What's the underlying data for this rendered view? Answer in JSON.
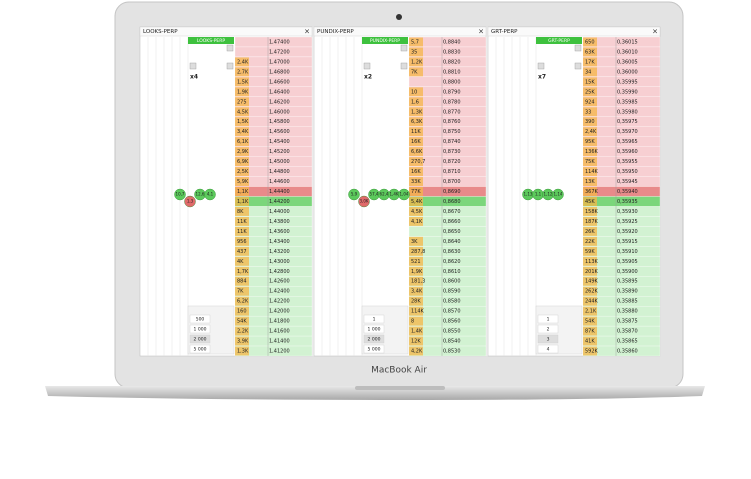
{
  "device": {
    "label": "MacBook Air"
  },
  "panels": [
    {
      "name": "LOOKS-PERP",
      "close": "×",
      "leverage": "x4",
      "bubbles": [
        {
          "label": "10,7",
          "side": "buy"
        },
        {
          "label": "1,3",
          "side": "sell"
        },
        {
          "label": "12,6",
          "side": "buy"
        },
        {
          "label": "4,1",
          "side": "buy"
        }
      ],
      "sizes": [
        "500",
        "1 000",
        "2 000",
        "5 000"
      ],
      "asks": [
        [
          "",
          "1,47400"
        ],
        [
          "",
          "1,47200"
        ],
        [
          "2,4K",
          "1,47000"
        ],
        [
          "2,7K",
          "1,46800"
        ],
        [
          "1,5K",
          "1,46600"
        ],
        [
          "1,9K",
          "1,46400"
        ],
        [
          "275",
          "1,46200"
        ],
        [
          "4,5K",
          "1,46000"
        ],
        [
          "1,5K",
          "1,45800"
        ],
        [
          "3,4K",
          "1,45600"
        ],
        [
          "6,1K",
          "1,45400"
        ],
        [
          "2,9K",
          "1,45200"
        ],
        [
          "6,9K",
          "1,45000"
        ],
        [
          "2,5K",
          "1,44800"
        ],
        [
          "5,9K",
          "1,44600"
        ],
        [
          "1,1K",
          "1,44400"
        ]
      ],
      "bids": [
        [
          "1,1K",
          "1,44200"
        ],
        [
          "8K",
          "1,44000"
        ],
        [
          "11K",
          "1,43800"
        ],
        [
          "11K",
          "1,43600"
        ],
        [
          "956",
          "1,43400"
        ],
        [
          "437",
          "1,43200"
        ],
        [
          "4K",
          "1,43000"
        ],
        [
          "1,7K",
          "1,42800"
        ],
        [
          "884",
          "1,42600"
        ],
        [
          "7K",
          "1,42400"
        ],
        [
          "6,2K",
          "1,42200"
        ],
        [
          "160",
          "1,42000"
        ],
        [
          "54K",
          "1,41800"
        ],
        [
          "2,2K",
          "1,41600"
        ],
        [
          "3,9K",
          "1,41400"
        ],
        [
          "1,3K",
          "1,41200"
        ]
      ]
    },
    {
      "name": "PUNDIX-PERP",
      "close": "×",
      "leverage": "x2",
      "bubbles": [
        {
          "label": "5,9",
          "side": "buy"
        },
        {
          "label": "3,0K",
          "side": "sell"
        },
        {
          "label": "57,4",
          "side": "buy"
        },
        {
          "label": "62,4",
          "side": "buy"
        },
        {
          "label": "1,4K",
          "side": "buy"
        },
        {
          "label": "1,04",
          "side": "buy"
        }
      ],
      "sizes": [
        "1",
        "1 000",
        "2 000",
        "5 000"
      ],
      "asks": [
        [
          "5,7",
          "0,8840"
        ],
        [
          "35",
          "0,8830"
        ],
        [
          "1,2K",
          "0,8820"
        ],
        [
          "7K",
          "0,8810"
        ],
        [
          "",
          "0,8800"
        ],
        [
          "10",
          "0,8790"
        ],
        [
          "1,6",
          "0,8780"
        ],
        [
          "1,3K",
          "0,8770"
        ],
        [
          "6,3K",
          "0,8760"
        ],
        [
          "11K",
          "0,8750"
        ],
        [
          "16K",
          "0,8740"
        ],
        [
          "6,6K",
          "0,8730"
        ],
        [
          "270,7",
          "0,8720"
        ],
        [
          "16K",
          "0,8710"
        ],
        [
          "33K",
          "0,8700"
        ],
        [
          "77K",
          "0,8690"
        ]
      ],
      "bids": [
        [
          "5,4K",
          "0,8680"
        ],
        [
          "4,5K",
          "0,8670"
        ],
        [
          "4,1K",
          "0,8660"
        ],
        [
          "",
          "0,8650"
        ],
        [
          "3K",
          "0,8640"
        ],
        [
          "287,8",
          "0,8630"
        ],
        [
          "521",
          "0,8620"
        ],
        [
          "1,9K",
          "0,8610"
        ],
        [
          "181,3",
          "0,8600"
        ],
        [
          "3,4K",
          "0,8590"
        ],
        [
          "28K",
          "0,8580"
        ],
        [
          "114K",
          "0,8570"
        ],
        [
          "8",
          "0,8560"
        ],
        [
          "1,4K",
          "0,8550"
        ],
        [
          "12K",
          "0,8540"
        ],
        [
          "4,2K",
          "0,8530"
        ]
      ]
    },
    {
      "name": "GRT-PERP",
      "close": "×",
      "leverage": "x7",
      "bubbles": [
        {
          "label": "1,13",
          "side": "buy"
        },
        {
          "label": "1,1",
          "side": "buy"
        },
        {
          "label": "1,12",
          "side": "buy"
        },
        {
          "label": "1,14",
          "side": "buy"
        }
      ],
      "sizes": [
        "1",
        "2",
        "3",
        "4"
      ],
      "asks": [
        [
          "650",
          "0,36015"
        ],
        [
          "63K",
          "0,36010"
        ],
        [
          "17K",
          "0,36005"
        ],
        [
          "34",
          "0,36000"
        ],
        [
          "15K",
          "0,35995"
        ],
        [
          "25K",
          "0,35990"
        ],
        [
          "924",
          "0,35985"
        ],
        [
          "33",
          "0,35980"
        ],
        [
          "390",
          "0,35975"
        ],
        [
          "2,4K",
          "0,35970"
        ],
        [
          "95K",
          "0,35965"
        ],
        [
          "136K",
          "0,35960"
        ],
        [
          "75K",
          "0,35955"
        ],
        [
          "114K",
          "0,35950"
        ],
        [
          "13K",
          "0,35945"
        ],
        [
          "367K",
          "0,35940"
        ]
      ],
      "bids": [
        [
          "45K",
          "0,35935"
        ],
        [
          "158K",
          "0,35930"
        ],
        [
          "187K",
          "0,35925"
        ],
        [
          "26K",
          "0,35920"
        ],
        [
          "22K",
          "0,35915"
        ],
        [
          "59K",
          "0,35910"
        ],
        [
          "113K",
          "0,35905"
        ],
        [
          "201K",
          "0,35900"
        ],
        [
          "149K",
          "0,35895"
        ],
        [
          "262K",
          "0,35890"
        ],
        [
          "244K",
          "0,35885"
        ],
        [
          "2,1K",
          "0,35880"
        ],
        [
          "54K",
          "0,35875"
        ],
        [
          "87K",
          "0,35870"
        ],
        [
          "41K",
          "0,35865"
        ],
        [
          "592K",
          "0,35860"
        ]
      ]
    }
  ]
}
